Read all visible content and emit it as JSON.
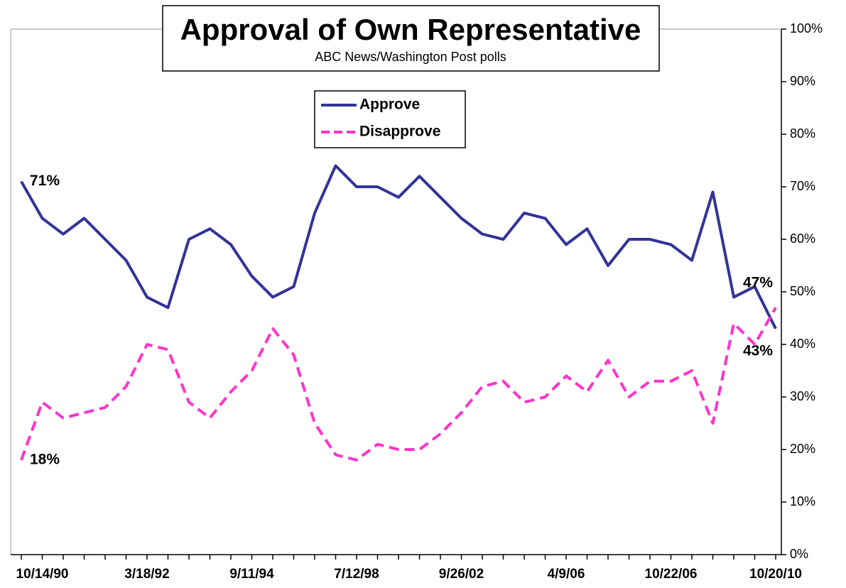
{
  "chart_data": {
    "type": "line",
    "title": "Approval of Own Representative",
    "subtitle": "ABC News/Washington  Post polls",
    "categories": [
      null,
      "10/14/90",
      null,
      null,
      null,
      null,
      "3/18/92",
      null,
      null,
      null,
      null,
      "9/11/94",
      null,
      null,
      null,
      null,
      "7/12/98",
      null,
      null,
      null,
      null,
      "9/26/02",
      null,
      null,
      null,
      null,
      "4/9/06",
      null,
      null,
      null,
      null,
      "10/22/06",
      null,
      null,
      null,
      null,
      "10/20/10"
    ],
    "series": [
      {
        "name": "Approve",
        "color": "#333399",
        "dashed": false,
        "values": [
          71,
          64,
          61,
          64,
          60,
          56,
          49,
          47,
          60,
          62,
          59,
          53,
          49,
          51,
          65,
          74,
          70,
          70,
          68,
          72,
          68,
          64,
          61,
          60,
          65,
          64,
          59,
          62,
          55,
          60,
          60,
          59,
          56,
          69,
          49,
          51,
          43
        ],
        "value_labels": [
          "71%",
          null,
          null,
          null,
          null,
          null,
          null,
          null,
          null,
          null,
          null,
          null,
          null,
          null,
          null,
          null,
          null,
          null,
          null,
          null,
          null,
          null,
          null,
          null,
          null,
          null,
          null,
          null,
          null,
          null,
          null,
          null,
          null,
          null,
          null,
          null,
          "43%"
        ]
      },
      {
        "name": "Disapprove",
        "color": "#ff33cc",
        "dashed": true,
        "values": [
          18,
          29,
          26,
          27,
          28,
          32,
          40,
          39,
          29,
          26,
          31,
          35,
          43,
          38,
          25,
          19,
          18,
          21,
          20,
          20,
          23,
          27,
          32,
          33,
          29,
          30,
          34,
          31,
          37,
          30,
          33,
          33,
          35,
          25,
          44,
          40,
          47
        ],
        "value_labels": [
          "18%",
          null,
          null,
          null,
          null,
          null,
          null,
          null,
          null,
          null,
          null,
          null,
          null,
          null,
          null,
          null,
          null,
          null,
          null,
          null,
          null,
          null,
          null,
          null,
          null,
          null,
          null,
          null,
          null,
          null,
          null,
          null,
          null,
          null,
          null,
          null,
          "47%"
        ]
      }
    ],
    "ylim": [
      0,
      100
    ],
    "yticks": [
      {
        "value": 0,
        "label": "0%"
      },
      {
        "value": 10,
        "label": "10%"
      },
      {
        "value": 20,
        "label": "20%"
      },
      {
        "value": 30,
        "label": "30%"
      },
      {
        "value": 40,
        "label": "40%"
      },
      {
        "value": 50,
        "label": "50%"
      },
      {
        "value": 60,
        "label": "60%"
      },
      {
        "value": 70,
        "label": "70%"
      },
      {
        "value": 80,
        "label": "80%"
      },
      {
        "value": 90,
        "label": "90%"
      },
      {
        "value": 100,
        "label": "100%"
      }
    ],
    "y_axis_side": "right",
    "grid": false
  }
}
